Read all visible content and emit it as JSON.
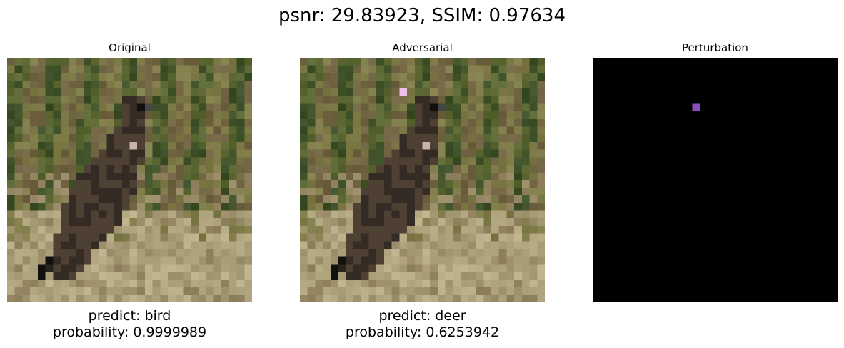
{
  "figure": {
    "title": "psnr: 29.83923, SSIM: 0.97634"
  },
  "panels": [
    {
      "title": "Original",
      "predict": "predict: bird",
      "probability": "probability: 0.9999989"
    },
    {
      "title": "Adversarial",
      "predict": "predict: deer",
      "probability": "probability: 0.6253942"
    },
    {
      "title": "Perturbation"
    }
  ],
  "image_content": {
    "subject": "bird",
    "grid": "32x32",
    "perturbed_pixel": {
      "col": 16,
      "row": 2
    },
    "adversarial_pixel_color": "#f0c0ec",
    "perturbation_pixel_color": "#8a4fbb",
    "perturbation_background": "#000000"
  }
}
